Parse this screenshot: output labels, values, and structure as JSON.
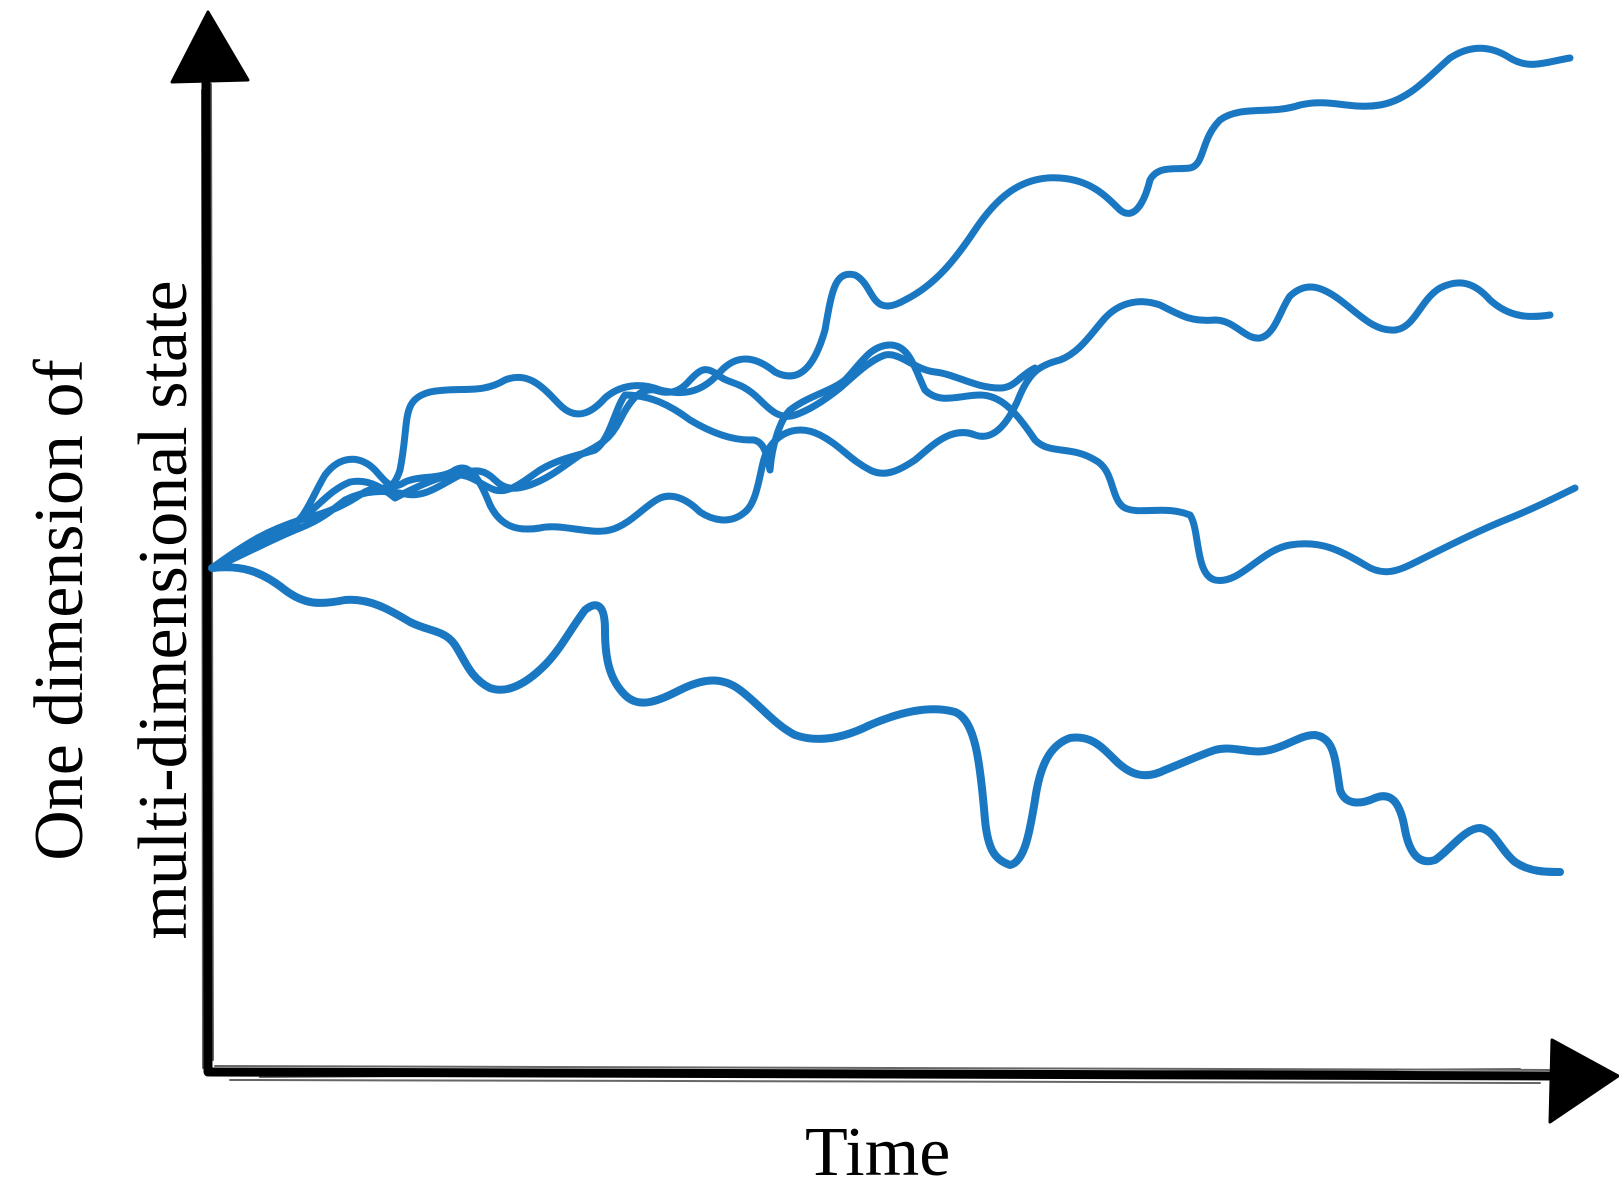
{
  "diagram": {
    "x_axis_label": "Time",
    "y_axis_label_line1": "One dimension of",
    "y_axis_label_line2": "multi-dimensional state",
    "trajectory_count": 5,
    "colors": {
      "trajectory": "#1a78c2",
      "axis": "#000000",
      "background": "#ffffff"
    }
  }
}
